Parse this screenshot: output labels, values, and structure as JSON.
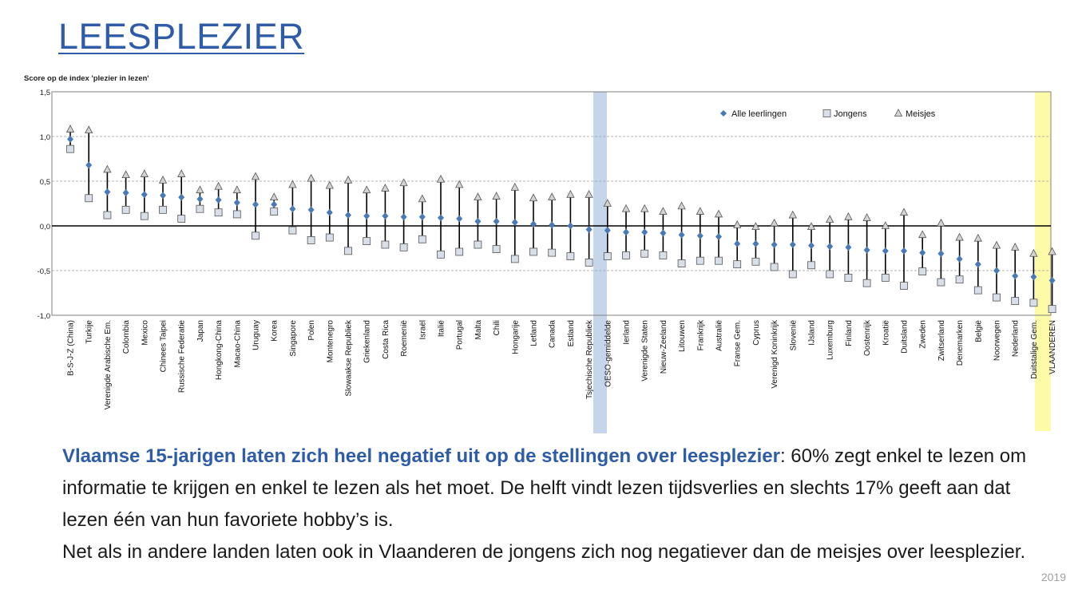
{
  "slide": {
    "title": "LEESPLEZIER",
    "year": "2019"
  },
  "caption": {
    "highlight": "Vlaamse 15-jarigen laten zich heel negatief uit op de stellingen over leesplezier",
    "rest": ": 60% zegt enkel te lezen om informatie te krijgen en enkel te lezen als het moet. De helft vindt lezen tijdsverlies en slechts 17% geeft aan dat lezen één van hun favoriete hobby’s is.",
    "line2": "Net als in andere landen laten ook in Vlaanderen de jongens zich nog negatiever dan de meisjes over leesplezier."
  },
  "colors": {
    "all": "#4a7ab5",
    "boys_fill": "#d9dfe9",
    "girls_fill": "#d3d3d3",
    "oeso_band": "#c5d5ea",
    "vlaanderen_band": "#fdfaa8",
    "title": "#2e5ca8"
  },
  "chart_data": {
    "type": "scatter",
    "title": "Score op de index 'plezier in lezen'",
    "ylim": [
      -1.0,
      1.5
    ],
    "yticks": [
      "1,5",
      "1,0",
      "0,5",
      "0,0",
      "-0,5",
      "-1,0"
    ],
    "yticks_values": [
      1.5,
      1.0,
      0.5,
      0.0,
      -0.5,
      -1.0
    ],
    "legend": [
      "Alle leerlingen",
      "Jongens",
      "Meisjes"
    ],
    "legend_position": "top-right",
    "highlight_bands": [
      "OESO-gemiddelde",
      "VLAANDEREN"
    ],
    "categories": [
      "B-S-J-Z (China)",
      "Turkije",
      "Verenigde Arabische Em.",
      "Colombia",
      "Mexico",
      "Chinees Taipei",
      "Russische Federatie",
      "Japan",
      "Hongkong-China",
      "Macao-China",
      "Uruguay",
      "Korea",
      "Singapore",
      "Polen",
      "Montenegro",
      "Slowaakse Republiek",
      "Griekenland",
      "Costa Rica",
      "Roemenië",
      "Israël",
      "Italië",
      "Portugal",
      "Malta",
      "Chili",
      "Hongarije",
      "Letland",
      "Canada",
      "Estland",
      "Tsjechische Republiek",
      "OESO-gemiddelde",
      "Ierland",
      "Verenigde Staten",
      "Nieuw-Zeeland",
      "Litouwen",
      "Frankrijk",
      "Australië",
      "Franse Gem.",
      "Cyprus",
      "Verenigd Koninkrijk",
      "Slovenië",
      "IJsland",
      "Luxemburg",
      "Finland",
      "Oostenrijk",
      "Kroatië",
      "Duitsland",
      "Zweden",
      "Zwitserland",
      "Denemarken",
      "België",
      "Noorwegen",
      "Nederland",
      "Duitstalige Gem.",
      "VLAANDEREN"
    ],
    "series": [
      {
        "name": "Alle leerlingen",
        "values": [
          0.97,
          0.68,
          0.38,
          0.37,
          0.35,
          0.34,
          0.32,
          0.3,
          0.29,
          0.26,
          0.24,
          0.24,
          0.19,
          0.18,
          0.15,
          0.12,
          0.11,
          0.11,
          0.1,
          0.1,
          0.09,
          0.08,
          0.05,
          0.05,
          0.04,
          0.02,
          0.01,
          0.0,
          -0.04,
          -0.05,
          -0.07,
          -0.07,
          -0.08,
          -0.1,
          -0.11,
          -0.12,
          -0.2,
          -0.2,
          -0.21,
          -0.21,
          -0.22,
          -0.23,
          -0.24,
          -0.27,
          -0.28,
          -0.28,
          -0.3,
          -0.31,
          -0.37,
          -0.43,
          -0.5,
          -0.56,
          -0.57,
          -0.61
        ]
      },
      {
        "name": "Jongens",
        "values": [
          0.86,
          0.31,
          0.12,
          0.18,
          0.11,
          0.18,
          0.08,
          0.19,
          0.15,
          0.13,
          -0.11,
          0.16,
          -0.05,
          -0.16,
          -0.13,
          -0.28,
          -0.17,
          -0.21,
          -0.24,
          -0.15,
          -0.32,
          -0.29,
          -0.21,
          -0.26,
          -0.37,
          -0.29,
          -0.3,
          -0.34,
          -0.41,
          -0.34,
          -0.33,
          -0.31,
          -0.33,
          -0.42,
          -0.39,
          -0.39,
          -0.43,
          -0.4,
          -0.46,
          -0.54,
          -0.44,
          -0.54,
          -0.58,
          -0.64,
          -0.58,
          -0.67,
          -0.51,
          -0.63,
          -0.6,
          -0.72,
          -0.8,
          -0.84,
          -0.86,
          -0.93
        ]
      },
      {
        "name": "Meisjes",
        "values": [
          1.08,
          1.07,
          0.63,
          0.57,
          0.58,
          0.51,
          0.58,
          0.4,
          0.44,
          0.4,
          0.55,
          0.32,
          0.46,
          0.53,
          0.45,
          0.51,
          0.4,
          0.42,
          0.48,
          0.3,
          0.52,
          0.46,
          0.32,
          0.33,
          0.43,
          0.31,
          0.32,
          0.35,
          0.35,
          0.25,
          0.19,
          0.19,
          0.16,
          0.22,
          0.16,
          0.13,
          0.01,
          -0.01,
          0.03,
          0.12,
          -0.01,
          0.07,
          0.1,
          0.09,
          0.0,
          0.15,
          -0.1,
          0.03,
          -0.13,
          -0.14,
          -0.22,
          -0.24,
          -0.31,
          -0.29
        ]
      }
    ]
  }
}
